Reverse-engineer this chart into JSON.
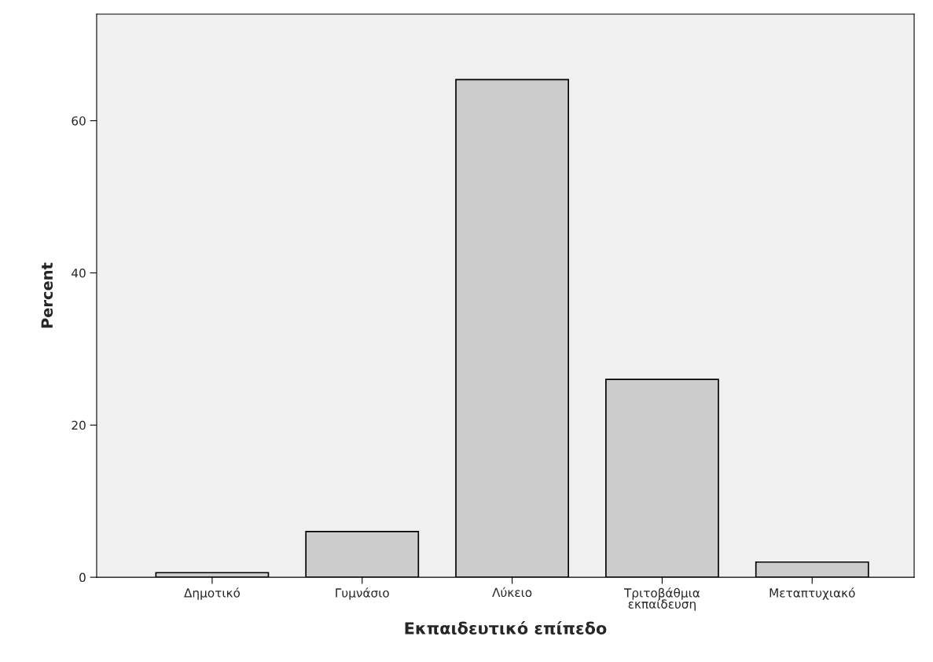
{
  "chart_data": {
    "type": "bar",
    "xlabel": "Εκπαιδευτικό επίπεδο",
    "ylabel": "Percent",
    "categories": [
      "Δημοτικό",
      "Γυμνάσιο",
      "Λύκειο",
      "Τριτοβάθμια\nεκπαίδευση",
      "Μεταπτυχιακό"
    ],
    "values": [
      0.6,
      6.0,
      65.4,
      26.0,
      2.0
    ],
    "color": "#cccccc",
    "ylim": [
      0,
      74
    ],
    "yticks": [
      0,
      20,
      40,
      60
    ],
    "grid": false,
    "legend": false
  }
}
